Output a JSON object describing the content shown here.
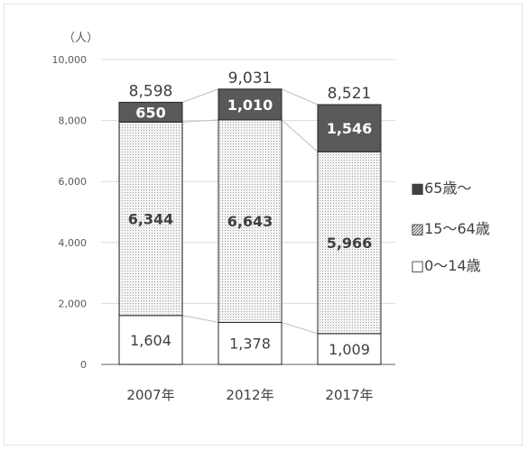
{
  "chart_data": {
    "type": "bar",
    "stacked": true,
    "unit_label": "（人）",
    "categories": [
      "2007年",
      "2012年",
      "2017年"
    ],
    "series": [
      {
        "name": "0～14歳",
        "values": [
          1604,
          1378,
          1009
        ],
        "value_labels": [
          "1,604",
          "1,378",
          "1,009"
        ]
      },
      {
        "name": "15～64歳",
        "values": [
          6344,
          6643,
          5966
        ],
        "value_labels": [
          "6,344",
          "6,643",
          "5,966"
        ]
      },
      {
        "name": "65歳～",
        "values": [
          650,
          1010,
          1546
        ],
        "value_labels": [
          "650",
          "1,010",
          "1,546"
        ]
      }
    ],
    "totals": [
      8598,
      9031,
      8521
    ],
    "total_labels": [
      "8,598",
      "9,031",
      "8,521"
    ],
    "y_ticks": [
      0,
      2000,
      4000,
      6000,
      8000,
      10000
    ],
    "y_tick_labels": [
      "0",
      "2,000",
      "4,000",
      "6,000",
      "8,000",
      "10,000"
    ],
    "ylim": [
      0,
      10000
    ],
    "legend": [
      "■65歳～",
      "▨15～64歳",
      "□0～14歳"
    ],
    "legend_position": "right",
    "grid": true,
    "colors": {
      "senior": "#595959",
      "working": "#e4e4e4",
      "youth": "#ffffff",
      "grid": "#d9d9d9",
      "text": "#404040"
    }
  }
}
